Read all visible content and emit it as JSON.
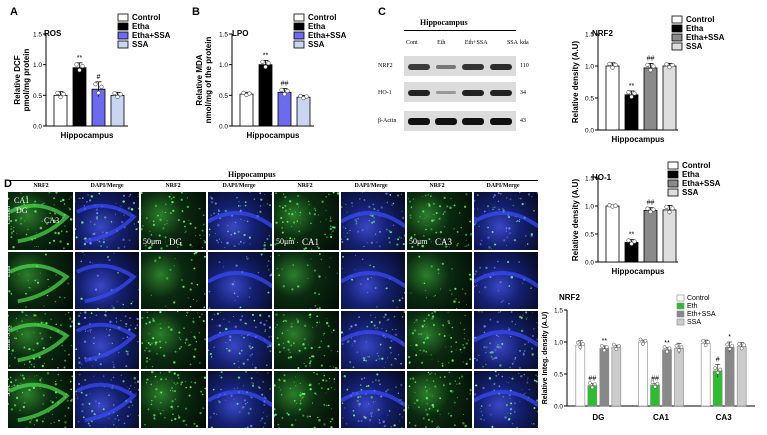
{
  "panels": {
    "A": "A",
    "B": "B",
    "C": "C",
    "D": "D"
  },
  "colors": {
    "control": "#ffffff",
    "etha": "#000000",
    "etha_ssa": "#6b6bf0",
    "ssa": "#c9d6f2",
    "nrf2_eth": "#2ebd2e",
    "nrf2_ethssa": "#888888",
    "nrf2_ssa": "#cccccc"
  },
  "legend": {
    "control": "Control",
    "etha": "Etha",
    "etha_ssa": "Etha+SSA",
    "ssa": "SSA",
    "eth": "Eth",
    "eth_ssa": "Eth+SSA"
  },
  "western_blot": {
    "title": "Hippocampus",
    "lanes": [
      "Cont",
      "Eth",
      "Eth+SSA",
      "SSA"
    ],
    "kda_label": "kda",
    "bands": [
      {
        "name": "NRF2",
        "kda": "110"
      },
      {
        "name": "HO-1",
        "kda": "34"
      },
      {
        "name": "β-Actin",
        "kda": "43"
      }
    ]
  },
  "ihc": {
    "title": "Hippocampus",
    "columns": [
      "NRF2",
      "DAPI/Merge",
      "NRF2",
      "DAPI/Merge",
      "NRF2",
      "DAPI/Merge",
      "NRF2",
      "DAPI/Merge"
    ],
    "rows": [
      "Control",
      "Etha",
      "Etha+SSA",
      "SSA"
    ],
    "region_labels": [
      "CA1",
      "DG",
      "CA3"
    ],
    "scale_labels": [
      "50μm",
      "50μm",
      "50μm"
    ],
    "zoom_labels": [
      "DG",
      "CA1",
      "CA3"
    ]
  },
  "chart_data": [
    {
      "type": "bar",
      "id": "ros",
      "title": "ROS",
      "ylabel": "Relative DCF\npmol/mg protein",
      "xlabel": "Hippocampus",
      "ylim": [
        0.0,
        1.5
      ],
      "yticks": [
        "0.0",
        "0.5",
        "1.0",
        "1.5"
      ],
      "categories": [
        "Control",
        "Etha",
        "Etha+SSA",
        "SSA"
      ],
      "values": [
        0.5,
        0.95,
        0.6,
        0.5
      ],
      "errors": [
        0.06,
        0.08,
        0.12,
        0.05
      ],
      "annotations": [
        "",
        "**",
        "#",
        ""
      ]
    },
    {
      "type": "bar",
      "id": "lpo",
      "title": "LPO",
      "ylabel": "Relative MDA\nnmol/mg of the protein",
      "xlabel": "Hippocampus",
      "ylim": [
        0.0,
        1.5
      ],
      "yticks": [
        "0.0",
        "0.5",
        "1.0",
        "1.5"
      ],
      "categories": [
        "Control",
        "Etha",
        "Etha+SSA",
        "SSA"
      ],
      "values": [
        0.52,
        1.0,
        0.55,
        0.47
      ],
      "errors": [
        0.03,
        0.07,
        0.06,
        0.03
      ],
      "annotations": [
        "",
        "**",
        "##",
        ""
      ]
    },
    {
      "type": "bar",
      "id": "nrf2",
      "title": "NRF2",
      "ylabel": "Relative density (A.U)",
      "xlabel": "Hippocampus",
      "ylim": [
        0.0,
        1.5
      ],
      "yticks": [
        "0.0",
        "0.5",
        "1.0",
        "1.5"
      ],
      "categories": [
        "Control",
        "Etha",
        "Etha+SSA",
        "SSA"
      ],
      "values": [
        1.0,
        0.55,
        0.97,
        1.0
      ],
      "errors": [
        0.05,
        0.06,
        0.07,
        0.04
      ],
      "annotations": [
        "",
        "**",
        "##",
        ""
      ]
    },
    {
      "type": "bar",
      "id": "ho1",
      "title": "HO-1",
      "ylabel": "Relative density (A.U)",
      "xlabel": "Hippocampus",
      "ylim": [
        0.0,
        1.5
      ],
      "yticks": [
        "0.0",
        "0.5",
        "1.0",
        "1.5"
      ],
      "categories": [
        "Control",
        "Etha",
        "Etha+SSA",
        "SSA"
      ],
      "values": [
        1.0,
        0.35,
        0.92,
        0.93
      ],
      "errors": [
        0.02,
        0.05,
        0.05,
        0.08
      ],
      "annotations": [
        "",
        "**",
        "##",
        ""
      ]
    },
    {
      "type": "bar",
      "id": "nrf2_regions",
      "title": "NRF2",
      "ylabel": "Relative Integ. density (A.U)",
      "xlabel": "",
      "ylim": [
        0.0,
        1.5
      ],
      "yticks": [
        "0.0",
        "0.5",
        "1.0",
        "1.5"
      ],
      "categories": [
        "DG",
        "CA1",
        "CA3"
      ],
      "series": [
        {
          "name": "Control",
          "values": [
            0.95,
            1.0,
            0.98
          ],
          "errors": [
            0.07,
            0.03,
            0.05
          ],
          "annotations": [
            "",
            "",
            ""
          ]
        },
        {
          "name": "Eth",
          "values": [
            0.32,
            0.33,
            0.55
          ],
          "errors": [
            0.03,
            0.02,
            0.1
          ],
          "annotations": [
            "##",
            "##",
            "#"
          ]
        },
        {
          "name": "Eth+SSA",
          "values": [
            0.9,
            0.88,
            0.92
          ],
          "errors": [
            0.04,
            0.03,
            0.08
          ],
          "annotations": [
            "**",
            "**",
            "*"
          ]
        },
        {
          "name": "SSA",
          "values": [
            0.92,
            0.9,
            0.93
          ],
          "errors": [
            0.03,
            0.08,
            0.06
          ],
          "annotations": [
            "",
            "",
            ""
          ]
        }
      ]
    }
  ]
}
